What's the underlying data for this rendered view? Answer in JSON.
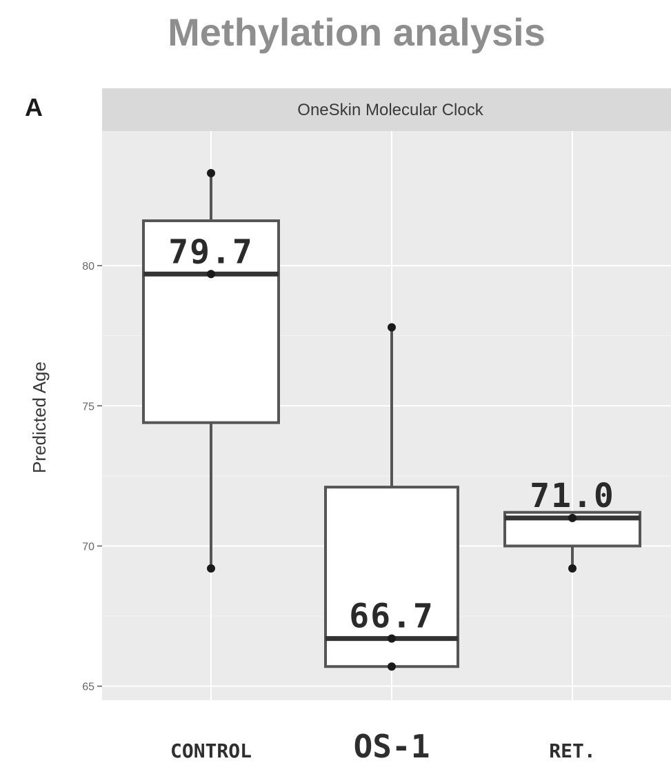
{
  "title": "Methylation analysis",
  "panel_label": "A",
  "chart_data": {
    "type": "box",
    "strip_label": "OneSkin Molecular Clock",
    "xlabel": "",
    "ylabel": "Predicted Age",
    "ylim": [
      64.5,
      84.8
    ],
    "yticks": [
      65,
      70,
      75,
      80
    ],
    "ytick_labels": [
      "65",
      "70",
      "75",
      "80"
    ],
    "grid": true,
    "categories": [
      "CONTROL",
      "OS-1",
      "RET."
    ],
    "boxes": [
      {
        "category": "CONTROL",
        "whisker_low": 69.2,
        "q1": 74.4,
        "median": 79.7,
        "q3": 81.6,
        "whisker_high": 83.3,
        "points": [
          83.3,
          79.7,
          69.2
        ],
        "median_label": "79.7"
      },
      {
        "category": "OS-1",
        "whisker_low": 65.7,
        "q1": 65.7,
        "median": 66.7,
        "q3": 72.1,
        "whisker_high": 77.8,
        "points": [
          77.8,
          66.7,
          65.7
        ],
        "median_label": "66.7"
      },
      {
        "category": "RET.",
        "whisker_low": 69.2,
        "q1": 70.0,
        "median": 71.0,
        "q3": 71.2,
        "whisker_high": 71.2,
        "points": [
          71.0,
          69.2
        ],
        "median_label": "71.0"
      }
    ]
  }
}
